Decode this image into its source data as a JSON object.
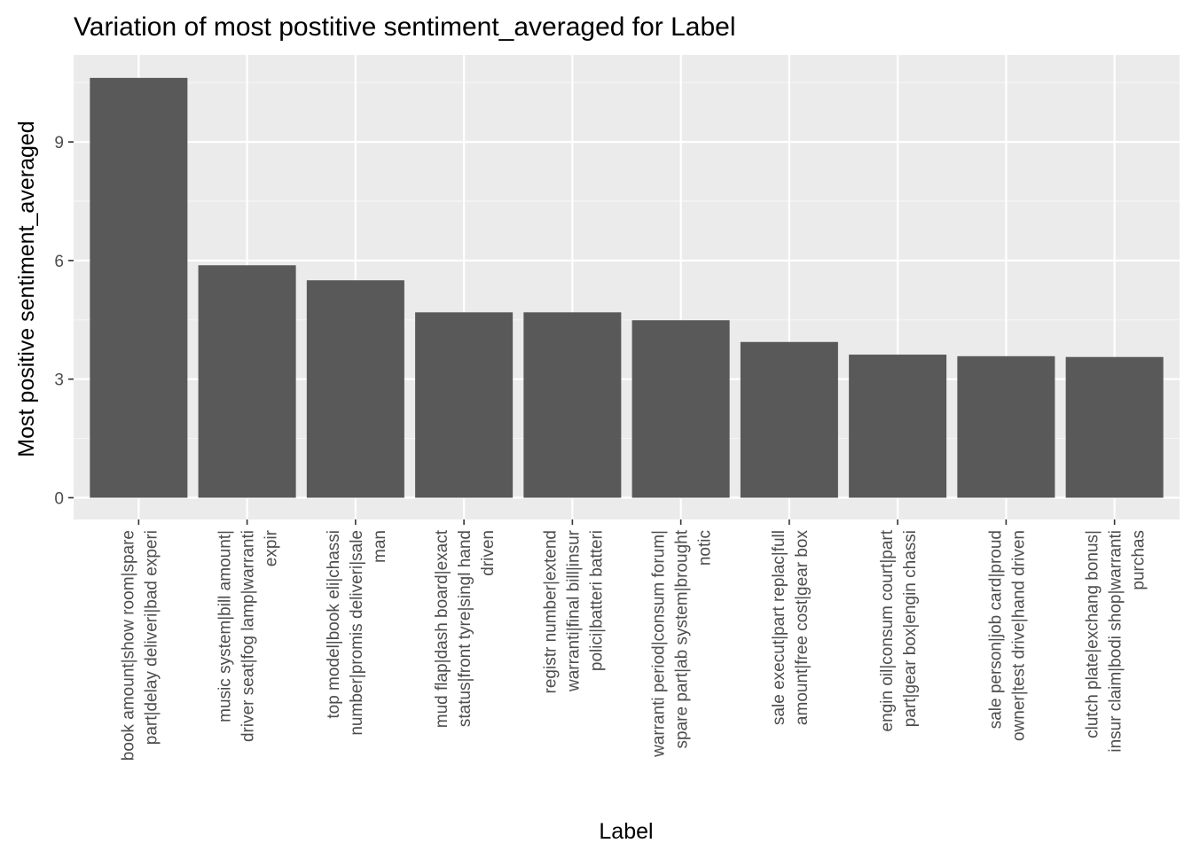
{
  "chart_data": {
    "type": "bar",
    "title": "Variation of most postitive sentiment_averaged for Label",
    "xlabel": "Label",
    "ylabel": "Most positive sentiment_averaged",
    "ylim": [
      -0.55,
      11.2
    ],
    "yticks": [
      0,
      3,
      6,
      9
    ],
    "grid": true,
    "colors": {
      "bar": "#595959",
      "panel": "#ebebeb",
      "grid_major": "#ffffff",
      "grid_minor": "#f5f5f5",
      "tick_text": "#4d4d4d",
      "tick_mark": "#333333"
    },
    "categories": [
      [
        "book amount|show room|spare",
        "part|delay deliveri|bad experi"
      ],
      [
        "music system|bill amount|",
        "driver seat|fog lamp|warranti",
        "expir"
      ],
      [
        "top model|book eli|chassi",
        "number|promis deliveri|sale",
        "man"
      ],
      [
        "mud flap|dash board|exact",
        "status|front tyre|singl hand",
        "driven"
      ],
      [
        "registr number|extend",
        "warranti|final bill|insur",
        "polici|batteri batteri"
      ],
      [
        "warranti period|consum forum|",
        "spare part|ab system|brought",
        "notic"
      ],
      [
        "sale execut|part replac|full",
        "amount|free cost|gear box"
      ],
      [
        "engin oil|consum court|part",
        "part|gear box|engin chassi"
      ],
      [
        "sale person|job card|proud",
        "owner|test drive|hand driven"
      ],
      [
        "clutch plate|exchang bonus|",
        "insur claim|bodi shop|warranti",
        "purchas"
      ]
    ],
    "values": [
      10.62,
      5.88,
      5.5,
      4.69,
      4.69,
      4.49,
      3.94,
      3.62,
      3.58,
      3.56
    ]
  }
}
